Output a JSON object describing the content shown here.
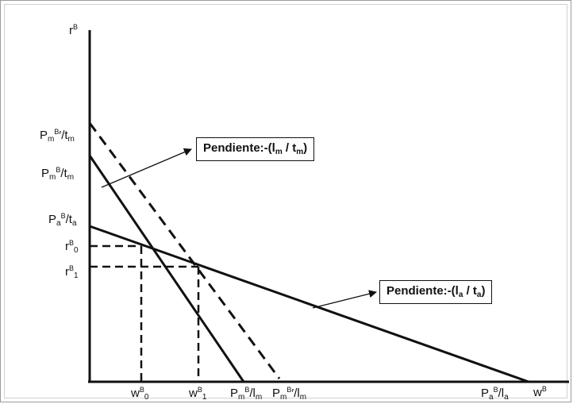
{
  "y_axis": {
    "base": "r",
    "sup": "B"
  },
  "x_axis": {
    "base": "w",
    "sup": "B"
  },
  "y_labels": {
    "pmb_prime_tm": {
      "a": "P",
      "a_sub": "m",
      "a_sup": "B",
      "b": "′/t",
      "b_sub": "m"
    },
    "pmb_tm": {
      "a": "P",
      "a_sub": "m",
      "a_sup": "B",
      "b": "/t",
      "b_sub": "m"
    },
    "pab_ta": {
      "a": "P",
      "a_sub": "a",
      "a_sup": "B",
      "b": "/t",
      "b_sub": "a"
    },
    "rb0": {
      "a": "r",
      "a_sup": "B",
      "a_sub": "0"
    },
    "rb1": {
      "a": "r",
      "a_sup": "B",
      "a_sub": "1"
    }
  },
  "x_labels": {
    "wb0": {
      "a": "w",
      "a_sup": "B",
      "a_sub": "0"
    },
    "wb1": {
      "a": "w",
      "a_sup": "B",
      "a_sub": "1"
    },
    "pmb_lm": {
      "a": "P",
      "a_sub": "m",
      "a_sup": "B",
      "b": "/l",
      "b_sub": "m"
    },
    "pmb_prime_lm": {
      "a": "P",
      "a_sub": "m",
      "a_sup": "B",
      "b": "′/l",
      "b_sub": "m"
    },
    "pab_la": {
      "a": "P",
      "a_sub": "a",
      "a_sup": "B",
      "b": "/l",
      "b_sub": "a"
    }
  },
  "annotations": {
    "slope_m": {
      "prefix": "Pendiente:-(l",
      "sub1": "m",
      "mid": " / t",
      "sub2": "m",
      "suffix": ")"
    },
    "slope_a": {
      "prefix": "Pendiente:-(l",
      "sub1": "a",
      "mid": " / t",
      "sub2": "a",
      "suffix": ")"
    }
  },
  "colors": {
    "line": "#111111",
    "frame": "#9a9a9a"
  }
}
